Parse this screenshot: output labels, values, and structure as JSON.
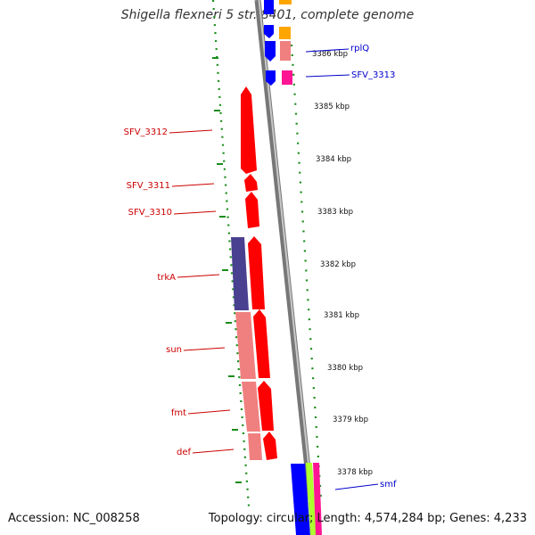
{
  "title": "Shigella flexneri 5 str. 8401, complete genome",
  "footer": {
    "accession": "Accession: NC_008258",
    "summary": "Topology: circular; Length: 4,574,284 bp; Genes: 4,233"
  },
  "colors": {
    "gene_red": "#ff0000",
    "gene_pink": "#f08080",
    "gene_navy": "#4a4090",
    "gene_blue": "#0000ff",
    "gene_orange": "#ffa500",
    "gene_magenta": "#ff1493",
    "gene_lime": "#adff2f",
    "gene_label_red": "#cc0000",
    "gene_label_blue": "#0000cc",
    "tick_green": "#1a8c1a",
    "backbone_gray": "#888888"
  },
  "ticks": [
    {
      "label": "3386 kbp"
    },
    {
      "label": "3385 kbp"
    },
    {
      "label": "3384 kbp"
    },
    {
      "label": "3383 kbp"
    },
    {
      "label": "3382 kbp"
    },
    {
      "label": "3381 kbp"
    },
    {
      "label": "3380 kbp"
    },
    {
      "label": "3379 kbp"
    },
    {
      "label": "3378 kbp"
    }
  ],
  "gene_labels": [
    {
      "text": "rplQ",
      "strand": "forward"
    },
    {
      "text": "SFV_3313",
      "strand": "forward"
    },
    {
      "text": "SFV_3312",
      "strand": "reverse"
    },
    {
      "text": "SFV_3311",
      "strand": "reverse"
    },
    {
      "text": "SFV_3310",
      "strand": "reverse"
    },
    {
      "text": "trkA",
      "strand": "reverse"
    },
    {
      "text": "sun",
      "strand": "reverse"
    },
    {
      "text": "fmt",
      "strand": "reverse"
    },
    {
      "text": "def",
      "strand": "reverse"
    },
    {
      "text": "smf",
      "strand": "forward"
    }
  ]
}
